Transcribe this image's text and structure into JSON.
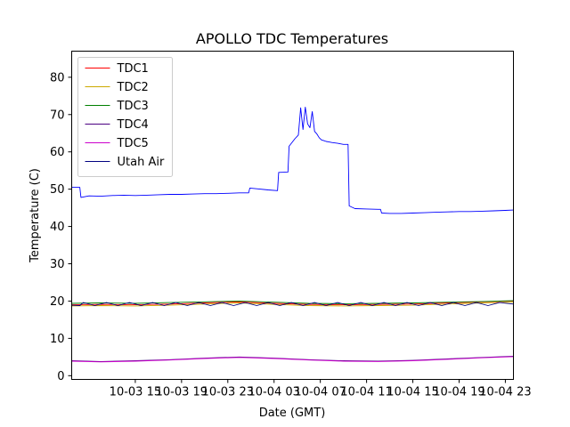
{
  "chart_data": {
    "type": "line",
    "title": "APOLLO TDC Temperatures",
    "xlabel": "Date (GMT)",
    "ylabel": "Temperature (C)",
    "x_unit": "hours",
    "xlim": [
      9.5,
      47.7
    ],
    "ylim": [
      -1,
      87
    ],
    "x_ticks": [
      {
        "value": 15,
        "label": "10-03 15"
      },
      {
        "value": 19,
        "label": "10-03 19"
      },
      {
        "value": 23,
        "label": "10-03 23"
      },
      {
        "value": 27,
        "label": "10-04 03"
      },
      {
        "value": 31,
        "label": "10-04 07"
      },
      {
        "value": 35,
        "label": "10-04 11"
      },
      {
        "value": 39,
        "label": "10-04 15"
      },
      {
        "value": 43,
        "label": "10-04 19"
      },
      {
        "value": 47,
        "label": "10-04 23"
      }
    ],
    "y_ticks": [
      0,
      10,
      20,
      30,
      40,
      50,
      60,
      70,
      80
    ],
    "grid": false,
    "legend_position": "top-left",
    "series": [
      {
        "name": "TDC1",
        "color": "#ff0000",
        "x": [
          9.5,
          12,
          15,
          18,
          21,
          24,
          27,
          30,
          33,
          36,
          39,
          42,
          45,
          47.7
        ],
        "y": [
          19.0,
          19.1,
          19.0,
          19.2,
          19.5,
          19.8,
          19.4,
          19.1,
          19.0,
          19.1,
          19.2,
          19.5,
          19.8,
          20.0
        ]
      },
      {
        "name": "TDC2",
        "color": "#ccaa00",
        "x": [
          9.5,
          12,
          15,
          18,
          21,
          24,
          27,
          30,
          33,
          36,
          39,
          42,
          45,
          47.7
        ],
        "y": [
          18.7,
          18.8,
          18.7,
          18.9,
          19.2,
          19.5,
          19.1,
          18.8,
          18.7,
          18.8,
          18.9,
          19.2,
          19.5,
          19.7
        ]
      },
      {
        "name": "TDC3",
        "color": "#008000",
        "x": [
          9.5,
          12,
          15,
          18,
          21,
          24,
          27,
          30,
          33,
          36,
          39,
          42,
          45,
          47.7
        ],
        "y": [
          19.4,
          19.5,
          19.4,
          19.6,
          19.8,
          20.0,
          19.7,
          19.4,
          19.3,
          19.4,
          19.5,
          19.7,
          19.9,
          20.1
        ]
      },
      {
        "name": "TDC4",
        "color": "#4b0082",
        "x": [
          9.5,
          12,
          15,
          18,
          21,
          24,
          27,
          30,
          33,
          36,
          39,
          42,
          45,
          47.7
        ],
        "y": [
          4.0,
          3.8,
          4.0,
          4.3,
          4.7,
          5.0,
          4.7,
          4.3,
          4.0,
          3.9,
          4.1,
          4.5,
          4.9,
          5.2
        ]
      },
      {
        "name": "TDC5",
        "color": "#cc00cc",
        "x": [
          9.5,
          12,
          15,
          18,
          21,
          24,
          27,
          30,
          33,
          36,
          39,
          42,
          45,
          47.7
        ],
        "y": [
          3.9,
          3.7,
          3.9,
          4.2,
          4.6,
          4.9,
          4.6,
          4.2,
          3.9,
          3.8,
          4.0,
          4.4,
          4.8,
          5.1
        ]
      },
      {
        "name": "Utah Air",
        "color": "#000080",
        "x": [
          9.5,
          10.2,
          10.5,
          11.5,
          12.5,
          13.5,
          14.5,
          15.5,
          16.5,
          17.5,
          18.5,
          19.5,
          20.5,
          21.5,
          22.5,
          23.5,
          24.5,
          25.5,
          26.5,
          27.5,
          28.5,
          29.5,
          30.5,
          31.5,
          32.5,
          33.5,
          34.5,
          35.5,
          36.5,
          37.5,
          38.5,
          39.5,
          40.5,
          41.5,
          42.5,
          43.5,
          44.5,
          45.5,
          46.5,
          47.7
        ],
        "y": [
          18.9,
          18.8,
          19.6,
          18.8,
          19.6,
          18.8,
          19.6,
          18.8,
          19.6,
          18.8,
          19.6,
          18.8,
          19.6,
          18.8,
          19.6,
          18.8,
          19.6,
          18.8,
          19.6,
          18.8,
          19.6,
          18.8,
          19.6,
          18.8,
          19.6,
          18.8,
          19.6,
          18.8,
          19.6,
          18.8,
          19.6,
          18.8,
          19.6,
          18.8,
          19.6,
          18.8,
          19.6,
          18.8,
          19.6,
          19.2
        ]
      },
      {
        "name": "",
        "color": "#0000ff",
        "x": [
          9.5,
          10.2,
          10.3,
          11.0,
          12.0,
          13.0,
          14.0,
          15.0,
          16.0,
          17.0,
          18.0,
          19.0,
          20.0,
          21.0,
          22.0,
          23.0,
          24.0,
          24.8,
          24.9,
          25.5,
          26.5,
          27.3,
          27.4,
          28.2,
          28.3,
          28.8,
          29.1,
          29.3,
          29.5,
          29.7,
          29.9,
          30.1,
          30.3,
          30.5,
          30.7,
          30.9,
          31.1,
          31.3,
          31.5,
          31.7,
          32.0,
          32.5,
          33.0,
          33.4,
          33.5,
          34.0,
          35.0,
          36.0,
          36.2,
          36.3,
          37.0,
          38.0,
          39.0,
          40.0,
          41.0,
          42.0,
          43.0,
          44.0,
          45.0,
          46.0,
          47.0,
          47.7
        ],
        "y": [
          50.5,
          50.5,
          47.8,
          48.2,
          48.1,
          48.3,
          48.4,
          48.3,
          48.4,
          48.5,
          48.6,
          48.6,
          48.7,
          48.8,
          48.8,
          48.9,
          49.0,
          49.0,
          50.3,
          50.1,
          49.8,
          49.6,
          54.5,
          54.6,
          61.5,
          63.5,
          64.5,
          71.8,
          66.0,
          72.0,
          67.5,
          66.5,
          70.8,
          65.5,
          64.8,
          63.8,
          63.2,
          63.0,
          62.8,
          62.7,
          62.5,
          62.3,
          62.0,
          62.0,
          45.5,
          44.8,
          44.7,
          44.6,
          44.6,
          43.6,
          43.5,
          43.5,
          43.6,
          43.7,
          43.8,
          43.9,
          44.0,
          44.0,
          44.1,
          44.2,
          44.3,
          44.4
        ]
      }
    ]
  }
}
